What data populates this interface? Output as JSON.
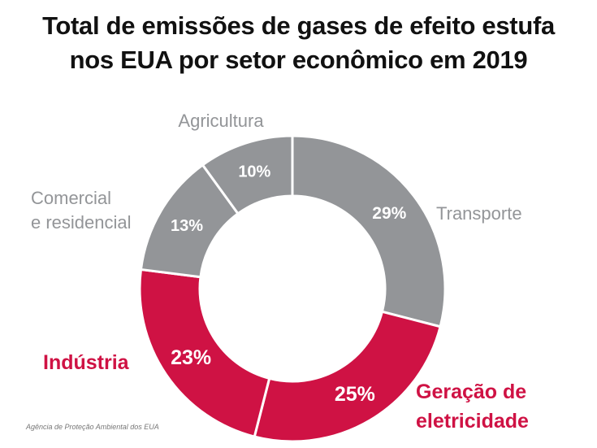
{
  "chart_data": {
    "type": "pie",
    "title": [
      "Total de emissões de gases de efeito estufa",
      "nos EUA por setor econômico em 2019"
    ],
    "categories": [
      "Transporte",
      "Geração de eletricidade",
      "Indústria",
      "Comercial e residencial",
      "Agricultura"
    ],
    "category_lines": [
      [
        "Transporte"
      ],
      [
        "Geração de",
        "eletricidade"
      ],
      [
        "Indústria"
      ],
      [
        "Comercial",
        "e residencial"
      ],
      [
        "Agricultura"
      ]
    ],
    "values": [
      29,
      25,
      23,
      13,
      10
    ],
    "data_labels": [
      "29%",
      "25%",
      "23%",
      "13%",
      "10%"
    ],
    "colors": [
      "#939598",
      "#cf1244",
      "#cf1244",
      "#939598",
      "#939598"
    ],
    "label_colors": [
      "#939598",
      "#cf1244",
      "#cf1244",
      "#939598",
      "#939598"
    ],
    "emphasized": [
      false,
      true,
      true,
      false,
      false
    ],
    "donut": true,
    "source": "Agência de Proteção Ambiental dos EUA"
  }
}
